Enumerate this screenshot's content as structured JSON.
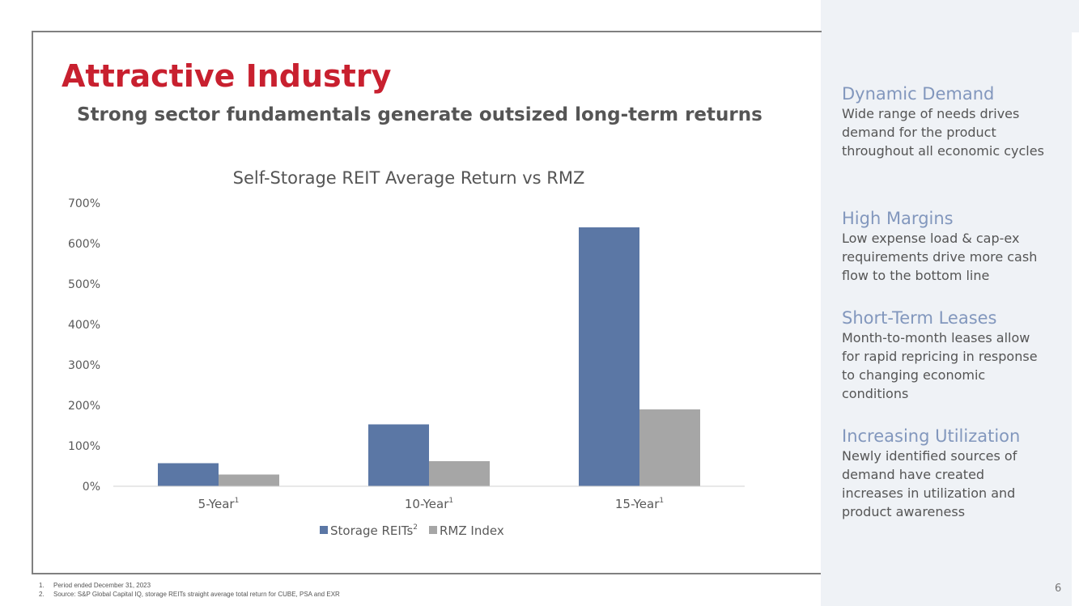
{
  "slide": {
    "title": "Attractive Industry",
    "subtitle": "Strong sector fundamentals generate outsized long-term returns",
    "page_number": "6",
    "accent_color": "#c8202f"
  },
  "sidebar": {
    "items": [
      {
        "heading": "Dynamic Demand",
        "body": "Wide range of needs drives demand for the product throughout all economic cycles"
      },
      {
        "heading": "High Margins",
        "body": "Low expense load & cap-ex requirements drive more cash flow to the bottom line"
      },
      {
        "heading": "Short-Term Leases",
        "body": "Month-to-month leases allow for rapid repricing in response to changing economic conditions"
      },
      {
        "heading": "Increasing Utilization",
        "body": "Newly identified sources of demand have created increases in utilization and product awareness"
      }
    ]
  },
  "footnotes": [
    {
      "num": "1.",
      "text": "Period ended December 31, 2023"
    },
    {
      "num": "2.",
      "text": "Source: S&P Global Capital IQ, storage REITs straight average total return for CUBE, PSA and EXR"
    }
  ],
  "chart_data": {
    "type": "bar",
    "title": "Self-Storage REIT Average Return vs RMZ",
    "categories": [
      "5-Year",
      "10-Year",
      "15-Year"
    ],
    "category_superscripts": [
      "1",
      "1",
      "1"
    ],
    "series": [
      {
        "name": "Storage REITs",
        "superscript": "2",
        "color": "#5b77a5",
        "values": [
          57,
          153,
          640
        ]
      },
      {
        "name": "RMZ Index",
        "superscript": "",
        "color": "#a6a6a6",
        "values": [
          29,
          62,
          190
        ]
      }
    ],
    "ylim": [
      0,
      700
    ],
    "yticks": [
      "0%",
      "100%",
      "200%",
      "300%",
      "400%",
      "500%",
      "600%",
      "700%"
    ],
    "xlabel": "",
    "ylabel": "",
    "grid": false,
    "legend": "bottom-center"
  }
}
